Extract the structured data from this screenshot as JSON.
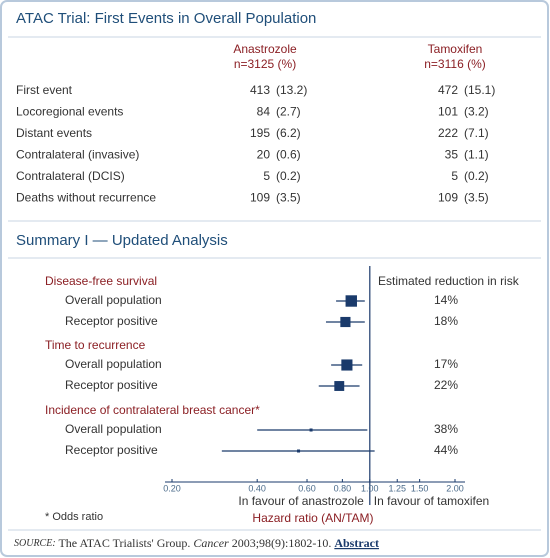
{
  "table": {
    "title": "ATAC Trial: First Events in Overall Population",
    "columns": [
      [
        "Anastrozole",
        "n=3125 (%)"
      ],
      [
        "Tamoxifen",
        "n=3116 (%)"
      ]
    ],
    "rows": [
      [
        "First event",
        "413",
        "(13.2)",
        "472",
        "(15.1)"
      ],
      [
        "Locoregional events",
        "84",
        "(2.7)",
        "101",
        "(3.2)"
      ],
      [
        "Distant events",
        "195",
        "(6.2)",
        "222",
        "(7.1)"
      ],
      [
        "Contralateral (invasive)",
        "20",
        "(0.6)",
        "35",
        "(1.1)"
      ],
      [
        "Contralateral (DCIS)",
        "5",
        "(0.2)",
        "5",
        "(0.2)"
      ],
      [
        "Deaths without recurrence",
        "109",
        "(3.5)",
        "109",
        "(3.5)"
      ]
    ]
  },
  "chart_data": {
    "type": "forest",
    "title": "Summary I — Updated Analysis",
    "right_header": "Estimated reduction in risk",
    "groups": [
      {
        "label": "Disease-free survival",
        "rows": [
          {
            "label": "Overall population",
            "hr": 0.86,
            "ci": [
              0.76,
              0.96
            ],
            "reduction": "14%"
          },
          {
            "label": "Receptor positive",
            "hr": 0.82,
            "ci": [
              0.7,
              0.96
            ],
            "reduction": "18%"
          }
        ]
      },
      {
        "label": "Time to recurrence",
        "rows": [
          {
            "label": "Overall population",
            "hr": 0.83,
            "ci": [
              0.73,
              0.94
            ],
            "reduction": "17%"
          },
          {
            "label": "Receptor positive",
            "hr": 0.78,
            "ci": [
              0.66,
              0.92
            ],
            "reduction": "22%"
          }
        ]
      },
      {
        "label": "Incidence of contralateral breast cancer*",
        "rows": [
          {
            "label": "Overall population",
            "hr": 0.62,
            "ci": [
              0.4,
              0.98
            ],
            "reduction": "38%"
          },
          {
            "label": "Receptor positive",
            "hr": 0.56,
            "ci": [
              0.3,
              1.04
            ],
            "reduction": "44%"
          }
        ]
      }
    ],
    "xscale": "log",
    "xlim": [
      0.2,
      2.0
    ],
    "xticks": [
      {
        "value": 0.2,
        "label": "0.20"
      },
      {
        "value": 0.4,
        "label": "0.40"
      },
      {
        "value": 0.6,
        "label": "0.60"
      },
      {
        "value": 0.8,
        "label": "0.80"
      },
      {
        "value": 1.0,
        "label": "1.00"
      },
      1.25,
      {
        "value": 1.5,
        "label": "1.50"
      },
      {
        "value": 2.0,
        "label": "2.00"
      }
    ],
    "reference": 1.0,
    "favour_left": "In favour of anastrozole",
    "favour_right": "In favour of tamoxifen",
    "xlabel": "Hazard ratio (AN/TAM)",
    "footnote": "* Odds ratio",
    "color": "#1a3a6b"
  },
  "source": {
    "label": "SOURCE:",
    "text": "The ATAC Trialists' Group.",
    "journal": "Cancer",
    "citation": "2003;98(9):1802-10.",
    "link": "Abstract"
  }
}
